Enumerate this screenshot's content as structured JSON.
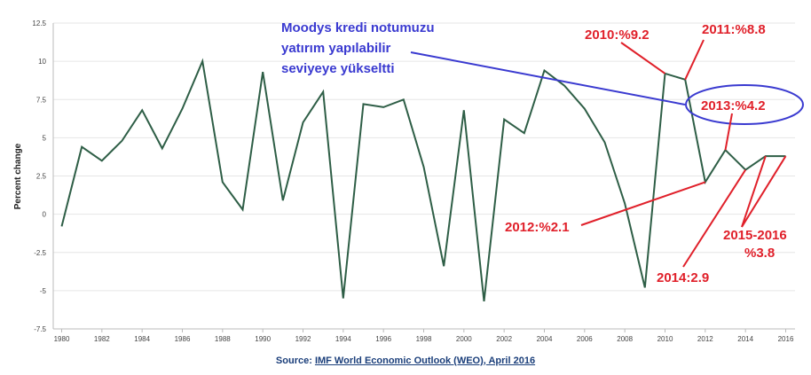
{
  "chart_data": {
    "type": "line",
    "title": "",
    "xlabel": "",
    "ylabel": "Percent change",
    "xlim": [
      1980,
      2016
    ],
    "ylim": [
      -7.5,
      12.5
    ],
    "yticks": [
      12.5,
      10,
      7.5,
      5,
      2.5,
      0,
      -2.5,
      -5,
      -7.5
    ],
    "ytick_labels": [
      "12.5",
      "10",
      "7.5",
      "5",
      "2.5",
      "0",
      "-2.5",
      "-5",
      "-7.5"
    ],
    "xticks": [
      "1980",
      "1982",
      "1984",
      "1986",
      "1988",
      "1990",
      "1992",
      "1994",
      "1996",
      "1998",
      "2000",
      "2002",
      "2004",
      "2006",
      "2008",
      "2010",
      "2012",
      "2014",
      "2016"
    ],
    "line_color": "#2e5e46",
    "series": [
      {
        "x": [
          1980,
          1981,
          1982,
          1983,
          1984,
          1985,
          1986,
          1987,
          1988,
          1989,
          1990,
          1991,
          1992,
          1993,
          1994,
          1995,
          1996,
          1997,
          1998,
          1999,
          2000,
          2001,
          2002,
          2003,
          2004,
          2005,
          2006,
          2007,
          2008,
          2009,
          2010,
          2011,
          2012,
          2013,
          2014,
          2015,
          2016
        ],
        "values": [
          -0.8,
          4.4,
          3.5,
          4.8,
          6.8,
          4.3,
          6.9,
          10.0,
          2.1,
          0.3,
          9.3,
          0.9,
          6.0,
          8.0,
          -5.5,
          7.2,
          7.0,
          7.5,
          3.1,
          -3.4,
          6.8,
          -5.7,
          6.2,
          5.3,
          9.4,
          8.4,
          6.9,
          4.7,
          0.7,
          -4.8,
          9.2,
          8.8,
          2.1,
          4.2,
          2.9,
          3.8,
          3.8
        ]
      }
    ],
    "annotations": {
      "moodys": [
        "Moodys kredi notumuzu",
        "yatırım yapılabilir",
        "seviyeye yükseltti"
      ],
      "y2010": "2010:%9.2",
      "y2011": "2011:%8.8",
      "y2013": "2013:%4.2",
      "y2012": "2012:%2.1",
      "y2014": "2014:2.9",
      "y2015_16_line1": "2015-2016",
      "y2015_16_line2": "%3.8"
    },
    "annotation_colors": {
      "red": "#e0202a",
      "blue": "#3a3ad0"
    }
  },
  "source": {
    "prefix": "Source: ",
    "link": "IMF World Economic Outlook (WEO), April 2016"
  }
}
